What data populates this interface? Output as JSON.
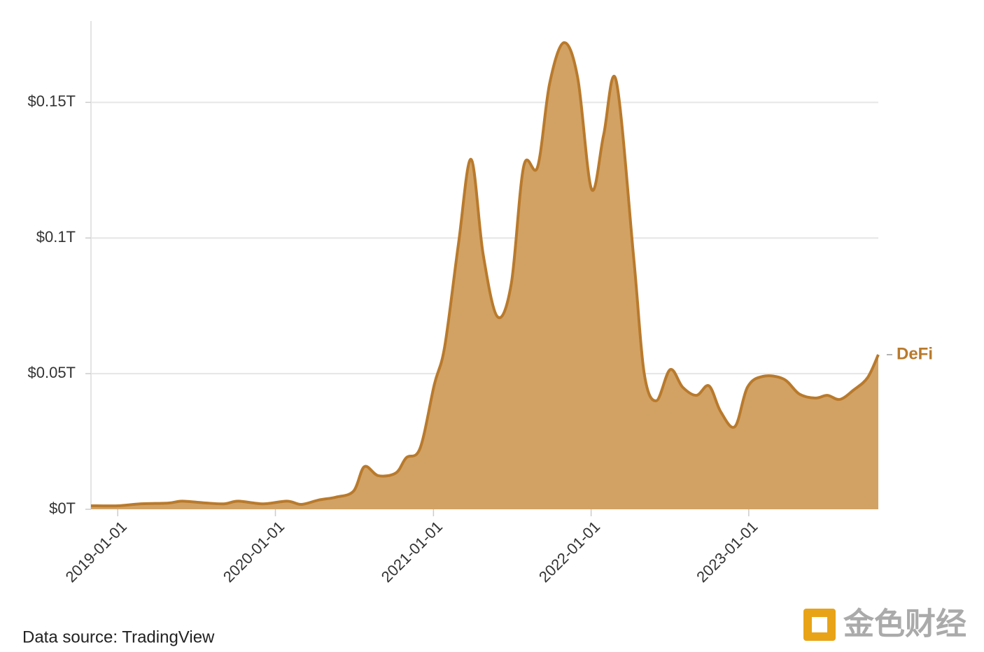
{
  "chart_data": {
    "type": "area",
    "series": [
      {
        "name": "DeFi",
        "color": "#b97a2c",
        "fill": "#d2a264",
        "x": [
          "2018-10-31",
          "2019-01-01",
          "2019-02-22",
          "2019-04-28",
          "2019-05-30",
          "2019-07-18",
          "2019-09-04",
          "2019-10-07",
          "2019-12-03",
          "2020-01-28",
          "2020-03-01",
          "2020-04-10",
          "2020-05-21",
          "2020-06-30",
          "2020-07-25",
          "2020-08-26",
          "2020-10-06",
          "2020-10-30",
          "2020-12-01",
          "2021-01-03",
          "2021-01-27",
          "2021-02-28",
          "2021-03-29",
          "2021-04-26",
          "2021-05-29",
          "2021-06-30",
          "2021-07-29",
          "2021-08-30",
          "2021-09-27",
          "2021-10-30",
          "2021-12-01",
          "2022-01-02",
          "2022-01-30",
          "2022-02-28",
          "2022-04-10",
          "2022-05-04",
          "2022-06-01",
          "2022-07-03",
          "2022-08-01",
          "2022-09-02",
          "2022-10-01",
          "2022-10-28",
          "2022-11-30",
          "2022-12-29",
          "2023-02-03",
          "2023-03-23",
          "2023-04-28",
          "2023-06-04",
          "2023-07-02",
          "2023-07-31",
          "2023-09-01",
          "2023-10-03",
          "2023-10-28"
        ],
        "values": [
          0.0013,
          0.0013,
          0.002,
          0.0023,
          0.003,
          0.0024,
          0.002,
          0.003,
          0.002,
          0.003,
          0.0018,
          0.0034,
          0.0045,
          0.0067,
          0.0157,
          0.0124,
          0.0134,
          0.019,
          0.0225,
          0.046,
          0.06,
          0.098,
          0.129,
          0.094,
          0.071,
          0.083,
          0.1265,
          0.1262,
          0.157,
          0.172,
          0.159,
          0.118,
          0.138,
          0.158,
          0.092,
          0.05,
          0.04,
          0.0515,
          0.045,
          0.042,
          0.0455,
          0.036,
          0.0305,
          0.045,
          0.049,
          0.048,
          0.0425,
          0.041,
          0.042,
          0.0405,
          0.044,
          0.0485,
          0.057
        ]
      }
    ],
    "xlim": [
      "2018-10-31",
      "2023-10-28"
    ],
    "xticks": [
      "2019-01-01",
      "2020-01-01",
      "2021-01-01",
      "2022-01-01",
      "2023-01-01"
    ],
    "ylim": [
      0,
      0.18
    ],
    "yticks": [
      {
        "value": 0,
        "label": "$0T"
      },
      {
        "value": 0.05,
        "label": "$0.05T"
      },
      {
        "value": 0.1,
        "label": "$0.1T"
      },
      {
        "value": 0.15,
        "label": "$0.15T"
      }
    ],
    "grid": true,
    "source": "Data source: TradingView",
    "watermark": "金色财经"
  }
}
